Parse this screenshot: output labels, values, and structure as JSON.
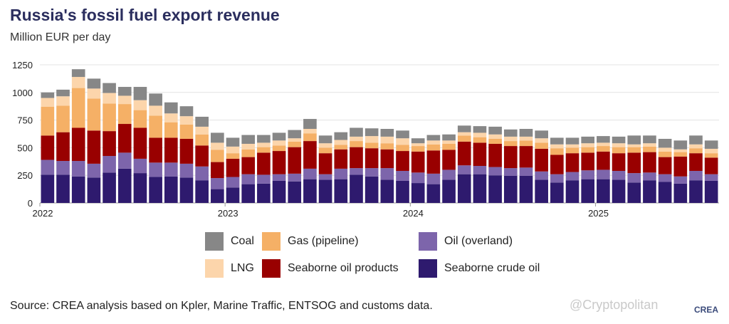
{
  "title": "Russia's fossil fuel export revenue",
  "subtitle": "Million EUR per day",
  "source": "Source: CREA analysis based on Kpler, Marine Traffic, ENTSOG and customs data.",
  "watermark": "@Cryptopolitan",
  "logo": "CREA",
  "chart_data": {
    "type": "bar",
    "stacked": true,
    "title": "Russia's fossil fuel export revenue",
    "ylabel": "Million EUR per day",
    "ylim": [
      0,
      1250
    ],
    "yticks": [
      0,
      250,
      500,
      750,
      1000,
      1250
    ],
    "xtick_labels": [
      {
        "label": "2022",
        "index": 0
      },
      {
        "label": "2023",
        "index": 12
      },
      {
        "label": "2024",
        "index": 24
      },
      {
        "label": "2025",
        "index": 36
      }
    ],
    "grid": "horizontal",
    "categories": [
      "2022-01",
      "2022-02",
      "2022-03",
      "2022-04",
      "2022-05",
      "2022-06",
      "2022-07",
      "2022-08",
      "2022-09",
      "2022-10",
      "2022-11",
      "2022-12",
      "2023-01",
      "2023-02",
      "2023-03",
      "2023-04",
      "2023-05",
      "2023-06",
      "2023-07",
      "2023-08",
      "2023-09",
      "2023-10",
      "2023-11",
      "2023-12",
      "2024-01",
      "2024-02",
      "2024-03",
      "2024-04",
      "2024-05",
      "2024-06",
      "2024-07",
      "2024-08",
      "2024-09",
      "2024-10",
      "2024-11",
      "2024-12",
      "2025-01",
      "2025-02",
      "2025-03",
      "2025-04",
      "2025-05",
      "2025-06",
      "2025-07",
      "2025-08"
    ],
    "series": [
      {
        "name": "Seaborne crude oil",
        "color": "#2e1a6e",
        "values": [
          255,
          255,
          240,
          230,
          275,
          310,
          270,
          235,
          240,
          230,
          205,
          125,
          140,
          170,
          175,
          200,
          195,
          215,
          210,
          215,
          255,
          240,
          210,
          200,
          180,
          170,
          210,
          260,
          260,
          250,
          245,
          245,
          210,
          185,
          205,
          215,
          215,
          210,
          185,
          205,
          190,
          175,
          205,
          200
        ]
      },
      {
        "name": "Oil (overland)",
        "color": "#7d65ab",
        "values": [
          135,
          125,
          140,
          125,
          150,
          145,
          130,
          130,
          125,
          125,
          125,
          100,
          95,
          90,
          80,
          60,
          70,
          95,
          50,
          95,
          60,
          75,
          105,
          90,
          95,
          95,
          90,
          80,
          75,
          75,
          70,
          75,
          75,
          75,
          75,
          80,
          85,
          80,
          85,
          70,
          70,
          65,
          85,
          60
        ]
      },
      {
        "name": "Seaborne oil products",
        "color": "#990000",
        "values": [
          220,
          260,
          300,
          300,
          225,
          260,
          280,
          225,
          225,
          225,
          190,
          145,
          165,
          155,
          200,
          210,
          240,
          250,
          190,
          175,
          190,
          180,
          170,
          180,
          190,
          210,
          180,
          215,
          210,
          210,
          200,
          195,
          205,
          175,
          170,
          160,
          165,
          160,
          185,
          185,
          155,
          180,
          160,
          150
        ]
      },
      {
        "name": "Gas (pipeline)",
        "color": "#f5b066",
        "values": [
          260,
          240,
          360,
          290,
          250,
          180,
          160,
          200,
          140,
          130,
          100,
          110,
          50,
          70,
          50,
          50,
          50,
          70,
          50,
          40,
          55,
          50,
          55,
          55,
          50,
          55,
          55,
          55,
          50,
          45,
          45,
          50,
          55,
          60,
          50,
          50,
          50,
          55,
          50,
          50,
          50,
          40,
          45,
          40
        ]
      },
      {
        "name": "LNG",
        "color": "#fcd5ab",
        "values": [
          80,
          85,
          100,
          90,
          95,
          75,
          90,
          90,
          80,
          75,
          70,
          65,
          60,
          50,
          40,
          45,
          30,
          40,
          40,
          45,
          40,
          60,
          60,
          60,
          25,
          35,
          30,
          30,
          40,
          40,
          40,
          35,
          40,
          35,
          30,
          35,
          30,
          35,
          25,
          30,
          35,
          25,
          35,
          40
        ]
      },
      {
        "name": "Coal",
        "color": "#878787",
        "values": [
          50,
          60,
          70,
          90,
          90,
          80,
          120,
          110,
          100,
          90,
          90,
          90,
          80,
          80,
          70,
          70,
          75,
          90,
          70,
          70,
          80,
          70,
          70,
          70,
          45,
          50,
          55,
          60,
          60,
          70,
          65,
          70,
          70,
          60,
          60,
          60,
          60,
          60,
          80,
          70,
          80,
          80,
          80,
          75
        ]
      }
    ],
    "legend": [
      {
        "name": "Coal",
        "color": "#878787"
      },
      {
        "name": "Gas (pipeline)",
        "color": "#f5b066"
      },
      {
        "name": "Oil (overland)",
        "color": "#7d65ab"
      },
      {
        "name": "LNG",
        "color": "#fcd5ab"
      },
      {
        "name": "Seaborne oil products",
        "color": "#990000"
      },
      {
        "name": "Seaborne crude oil",
        "color": "#2e1a6e"
      }
    ],
    "legend_position": "bottom"
  }
}
